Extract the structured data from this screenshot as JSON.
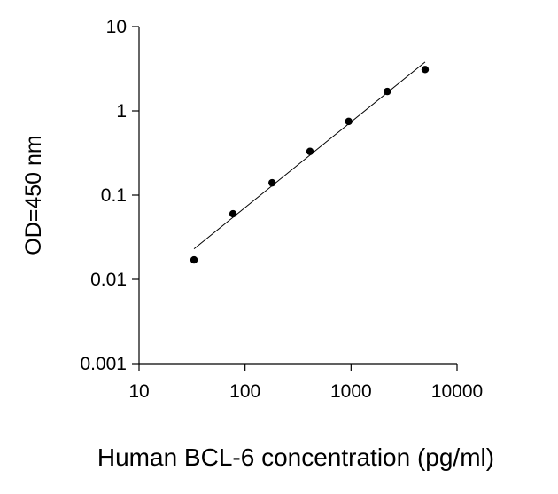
{
  "chart_data": {
    "type": "scatter",
    "xlabel": "Human BCL-6 concentration (pg/ml)",
    "ylabel": "OD=450 nm",
    "x_scale": "log",
    "y_scale": "log",
    "xlim": [
      10,
      10000
    ],
    "ylim": [
      0.001,
      10
    ],
    "x_ticks": [
      "10",
      "100",
      "1000",
      "10000"
    ],
    "y_ticks": [
      "10",
      "1",
      "0.1",
      "0.01",
      "0.001"
    ],
    "grid": false,
    "legend": "none",
    "series": [
      {
        "points": [
          {
            "x": 33,
            "y": 0.017
          },
          {
            "x": 77,
            "y": 0.06
          },
          {
            "x": 180,
            "y": 0.14
          },
          {
            "x": 410,
            "y": 0.33
          },
          {
            "x": 950,
            "y": 0.75
          },
          {
            "x": 2200,
            "y": 1.7
          },
          {
            "x": 5000,
            "y": 3.1
          }
        ]
      }
    ],
    "fit_line": [
      {
        "x": 33,
        "y": 0.023
      },
      {
        "x": 5000,
        "y": 3.8
      }
    ],
    "colors": {
      "marker": "#000000",
      "line": "#000000"
    }
  }
}
